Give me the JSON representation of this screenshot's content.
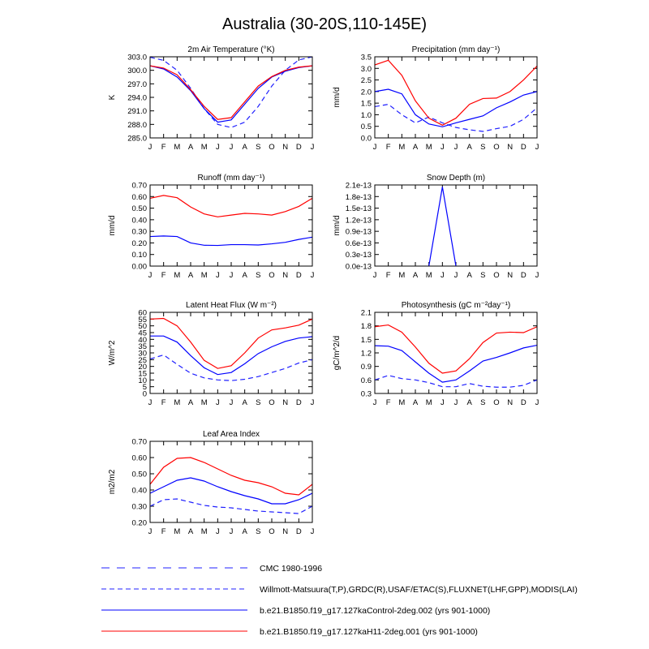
{
  "figure": {
    "title": "Australia (30-20S,110-145E)",
    "months": [
      "J",
      "F",
      "M",
      "A",
      "M",
      "J",
      "J",
      "A",
      "S",
      "O",
      "N",
      "D",
      "J"
    ]
  },
  "legend": [
    {
      "label": "CMC 1980-1996",
      "color": "#2020ff",
      "dash": "long-dash"
    },
    {
      "label": "Willmott-Matsuura(T,P),GRDC(R),USAF/ETAC(S),FLUXNET(LHF,GPP),MODIS(LAI)",
      "color": "#2020ff",
      "dash": "dash"
    },
    {
      "label": "b.e21.B1850.f19_g17.127kaControl-2deg.002 (yrs 901-1000)",
      "color": "#0000ff",
      "dash": "solid"
    },
    {
      "label": "b.e21.B1850.f19_g17.127kaH11-2deg.001 (yrs 901-1000)",
      "color": "#ff0000",
      "dash": "solid"
    }
  ],
  "chart_data": [
    {
      "type": "line",
      "title": "2m Air Temperature",
      "title_unit": "(°K)",
      "ylabel": "K",
      "ylim": [
        285.0,
        303.0
      ],
      "yticks": [
        "285.0",
        "288.0",
        "291.0",
        "294.0",
        "297.0",
        "300.0",
        "303.0"
      ],
      "categories": [
        "J",
        "F",
        "M",
        "A",
        "M",
        "J",
        "J",
        "A",
        "S",
        "O",
        "N",
        "D",
        "J"
      ],
      "series": [
        {
          "values": [
            302.9,
            302.2,
            300.0,
            296.0,
            291.5,
            288.0,
            287.3,
            288.5,
            292.0,
            296.5,
            300.0,
            302.3,
            303.0
          ],
          "color": "#2020ff",
          "dash": "dash"
        },
        {
          "values": [
            301.0,
            300.3,
            298.5,
            295.5,
            291.5,
            288.5,
            289.0,
            292.5,
            296.0,
            298.5,
            299.8,
            300.6,
            301.0
          ],
          "color": "#0000ff",
          "dash": "solid"
        },
        {
          "values": [
            301.0,
            300.5,
            299.0,
            295.7,
            292.0,
            289.1,
            289.5,
            293.0,
            296.5,
            298.6,
            300.0,
            300.7,
            301.0
          ],
          "color": "#ff0000",
          "dash": "solid"
        }
      ]
    },
    {
      "type": "line",
      "title": "Precipitation",
      "title_unit": "(mm day⁻¹)",
      "ylabel": "mm/d",
      "ylim": [
        0.0,
        3.5
      ],
      "yticks": [
        "0.0",
        "0.5",
        "1.0",
        "1.5",
        "2.0",
        "2.5",
        "3.0",
        "3.5"
      ],
      "categories": [
        "J",
        "F",
        "M",
        "A",
        "M",
        "J",
        "J",
        "A",
        "S",
        "O",
        "N",
        "D",
        "J"
      ],
      "series": [
        {
          "values": [
            1.35,
            1.45,
            1.0,
            0.65,
            0.9,
            0.65,
            0.45,
            0.35,
            0.28,
            0.4,
            0.5,
            0.8,
            1.3
          ],
          "color": "#2020ff",
          "dash": "dash"
        },
        {
          "values": [
            2.0,
            2.1,
            1.9,
            1.0,
            0.6,
            0.48,
            0.65,
            0.8,
            0.95,
            1.3,
            1.55,
            1.85,
            2.0
          ],
          "color": "#0000ff",
          "dash": "solid"
        },
        {
          "values": [
            3.15,
            3.35,
            2.7,
            1.6,
            0.85,
            0.55,
            0.85,
            1.45,
            1.7,
            1.72,
            2.0,
            2.5,
            3.1
          ],
          "color": "#ff0000",
          "dash": "solid"
        }
      ]
    },
    {
      "type": "line",
      "title": "Runoff",
      "title_unit": "(mm day⁻¹)",
      "ylabel": "mm/d",
      "ylim": [
        0.0,
        0.7
      ],
      "yticks": [
        "0.00",
        "0.10",
        "0.20",
        "0.30",
        "0.40",
        "0.50",
        "0.60",
        "0.70"
      ],
      "categories": [
        "J",
        "F",
        "M",
        "A",
        "M",
        "J",
        "J",
        "A",
        "S",
        "O",
        "N",
        "D",
        "J"
      ],
      "series": [
        {
          "values": [
            0.255,
            0.26,
            0.255,
            0.2,
            0.18,
            0.178,
            0.185,
            0.185,
            0.182,
            0.192,
            0.205,
            0.23,
            0.25
          ],
          "color": "#0000ff",
          "dash": "solid"
        },
        {
          "values": [
            0.585,
            0.61,
            0.59,
            0.51,
            0.45,
            0.425,
            0.44,
            0.455,
            0.45,
            0.44,
            0.47,
            0.515,
            0.585
          ],
          "color": "#ff0000",
          "dash": "solid"
        }
      ]
    },
    {
      "type": "line",
      "title": "Snow Depth",
      "title_unit": "(m)",
      "ylabel": "mm/d",
      "ylim": [
        0.0,
        2.1e-13
      ],
      "yticks": [
        "0.0e-13",
        "0.3e-13",
        "0.6e-13",
        "0.9e-13",
        "1.2e-13",
        "1.5e-13",
        "1.8e-13",
        "2.1e-13"
      ],
      "categories": [
        "J",
        "F",
        "M",
        "A",
        "M",
        "J",
        "J",
        "A",
        "S",
        "O",
        "N",
        "D",
        "J"
      ],
      "series": [
        {
          "values": [
            null,
            null,
            null,
            null,
            0,
            2.05e-13,
            0,
            null,
            null,
            null,
            null,
            null,
            null
          ],
          "color": "#0000ff",
          "dash": "solid"
        }
      ]
    },
    {
      "type": "line",
      "title": "Latent Heat Flux",
      "title_unit": "(W m⁻²)",
      "ylabel": "W/m^2",
      "ylim": [
        0,
        60
      ],
      "yticks": [
        "0",
        "5",
        "10",
        "15",
        "20",
        "25",
        "30",
        "35",
        "40",
        "45",
        "50",
        "55",
        "60"
      ],
      "categories": [
        "J",
        "F",
        "M",
        "A",
        "M",
        "J",
        "J",
        "A",
        "S",
        "O",
        "N",
        "D",
        "J"
      ],
      "series": [
        {
          "values": [
            25.5,
            28.5,
            21.5,
            15.0,
            11.5,
            10.0,
            9.5,
            10.5,
            12.5,
            15.5,
            18.5,
            22.5,
            25.0
          ],
          "color": "#2020ff",
          "dash": "dash"
        },
        {
          "values": [
            42.5,
            42.5,
            38.0,
            28.0,
            19.0,
            14.0,
            15.5,
            22.0,
            29.5,
            34.5,
            38.5,
            41.0,
            42.0
          ],
          "color": "#0000ff",
          "dash": "solid"
        },
        {
          "values": [
            55.0,
            55.5,
            50.0,
            38.0,
            24.5,
            18.5,
            20.5,
            30.0,
            41.0,
            47.0,
            48.5,
            50.5,
            55.0
          ],
          "color": "#ff0000",
          "dash": "solid"
        }
      ]
    },
    {
      "type": "line",
      "title": "Photosynthesis",
      "title_unit": "(gC m⁻²day⁻¹)",
      "ylabel": "gC/m^2/d",
      "ylim": [
        0.3,
        2.1
      ],
      "yticks": [
        "0.3",
        "0.6",
        "0.9",
        "1.2",
        "1.5",
        "1.8",
        "2.1"
      ],
      "categories": [
        "J",
        "F",
        "M",
        "A",
        "M",
        "J",
        "J",
        "A",
        "S",
        "O",
        "N",
        "D",
        "J"
      ],
      "series": [
        {
          "values": [
            0.6,
            0.7,
            0.63,
            0.6,
            0.54,
            0.45,
            0.45,
            0.52,
            0.46,
            0.44,
            0.44,
            0.48,
            0.6
          ],
          "color": "#2020ff",
          "dash": "dash"
        },
        {
          "values": [
            1.36,
            1.35,
            1.25,
            1.0,
            0.75,
            0.55,
            0.6,
            0.8,
            1.02,
            1.1,
            1.2,
            1.31,
            1.37
          ],
          "color": "#0000ff",
          "dash": "solid"
        },
        {
          "values": [
            1.78,
            1.82,
            1.66,
            1.33,
            0.97,
            0.75,
            0.8,
            1.07,
            1.43,
            1.64,
            1.66,
            1.65,
            1.78
          ],
          "color": "#ff0000",
          "dash": "solid"
        }
      ]
    },
    {
      "type": "line",
      "title": "Leaf Area Index",
      "title_unit": "",
      "ylabel": "m2/m2",
      "ylim": [
        0.2,
        0.7
      ],
      "yticks": [
        "0.20",
        "0.30",
        "0.40",
        "0.50",
        "0.60",
        "0.70"
      ],
      "categories": [
        "J",
        "F",
        "M",
        "A",
        "M",
        "J",
        "J",
        "A",
        "S",
        "O",
        "N",
        "D",
        "J"
      ],
      "series": [
        {
          "values": [
            0.3,
            0.34,
            0.345,
            0.325,
            0.305,
            0.295,
            0.29,
            0.28,
            0.27,
            0.265,
            0.26,
            0.255,
            0.3
          ],
          "color": "#2020ff",
          "dash": "dash"
        },
        {
          "values": [
            0.38,
            0.42,
            0.46,
            0.475,
            0.455,
            0.42,
            0.39,
            0.365,
            0.345,
            0.315,
            0.315,
            0.34,
            0.38
          ],
          "color": "#0000ff",
          "dash": "solid"
        },
        {
          "values": [
            0.435,
            0.54,
            0.595,
            0.6,
            0.57,
            0.53,
            0.49,
            0.46,
            0.445,
            0.42,
            0.38,
            0.37,
            0.435
          ],
          "color": "#ff0000",
          "dash": "solid"
        }
      ]
    }
  ]
}
